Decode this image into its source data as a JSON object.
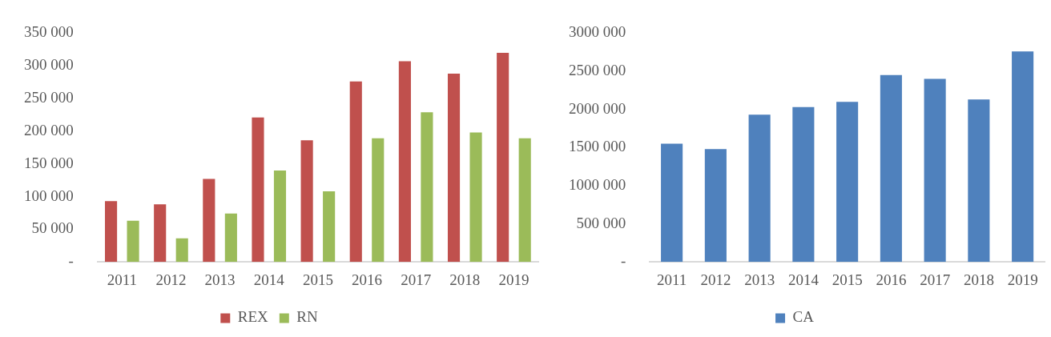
{
  "chart_data": [
    {
      "type": "bar",
      "categories": [
        "2011",
        "2012",
        "2013",
        "2014",
        "2015",
        "2016",
        "2017",
        "2018",
        "2019"
      ],
      "series": [
        {
          "name": "REX",
          "color": "#c0504d",
          "values": [
            93000,
            88000,
            127000,
            221000,
            186000,
            276000,
            307000,
            288000,
            320000
          ]
        },
        {
          "name": "RN",
          "color": "#9bbb59",
          "values": [
            63000,
            36000,
            74000,
            140000,
            108000,
            189000,
            229000,
            198000,
            189000
          ]
        }
      ],
      "ylim": [
        0,
        350000
      ],
      "yticks": [
        {
          "value": 0,
          "label": "-"
        },
        {
          "value": 50000,
          "label": "50 000"
        },
        {
          "value": 100000,
          "label": "100 000"
        },
        {
          "value": 150000,
          "label": "150 000"
        },
        {
          "value": 200000,
          "label": "200 000"
        },
        {
          "value": 250000,
          "label": "250 000"
        },
        {
          "value": 300000,
          "label": "300 000"
        },
        {
          "value": 350000,
          "label": "350 000"
        }
      ],
      "grid": false,
      "legend": "bottom"
    },
    {
      "type": "bar",
      "categories": [
        "2011",
        "2012",
        "2013",
        "2014",
        "2015",
        "2016",
        "2017",
        "2018",
        "2019"
      ],
      "series": [
        {
          "name": "CA",
          "color": "#4f81bd",
          "values": [
            1550000,
            1480000,
            1930000,
            2030000,
            2100000,
            2450000,
            2400000,
            2130000,
            2760000
          ]
        }
      ],
      "ylim": [
        0,
        3000000
      ],
      "yticks": [
        {
          "value": 0,
          "label": "-"
        },
        {
          "value": 500000,
          "label": "500 000"
        },
        {
          "value": 1000000,
          "label": "1000 000"
        },
        {
          "value": 1500000,
          "label": "1500 000"
        },
        {
          "value": 2000000,
          "label": "2000 000"
        },
        {
          "value": 2500000,
          "label": "2500 000"
        },
        {
          "value": 3000000,
          "label": "3000 000"
        }
      ],
      "grid": false,
      "legend": "bottom"
    }
  ]
}
